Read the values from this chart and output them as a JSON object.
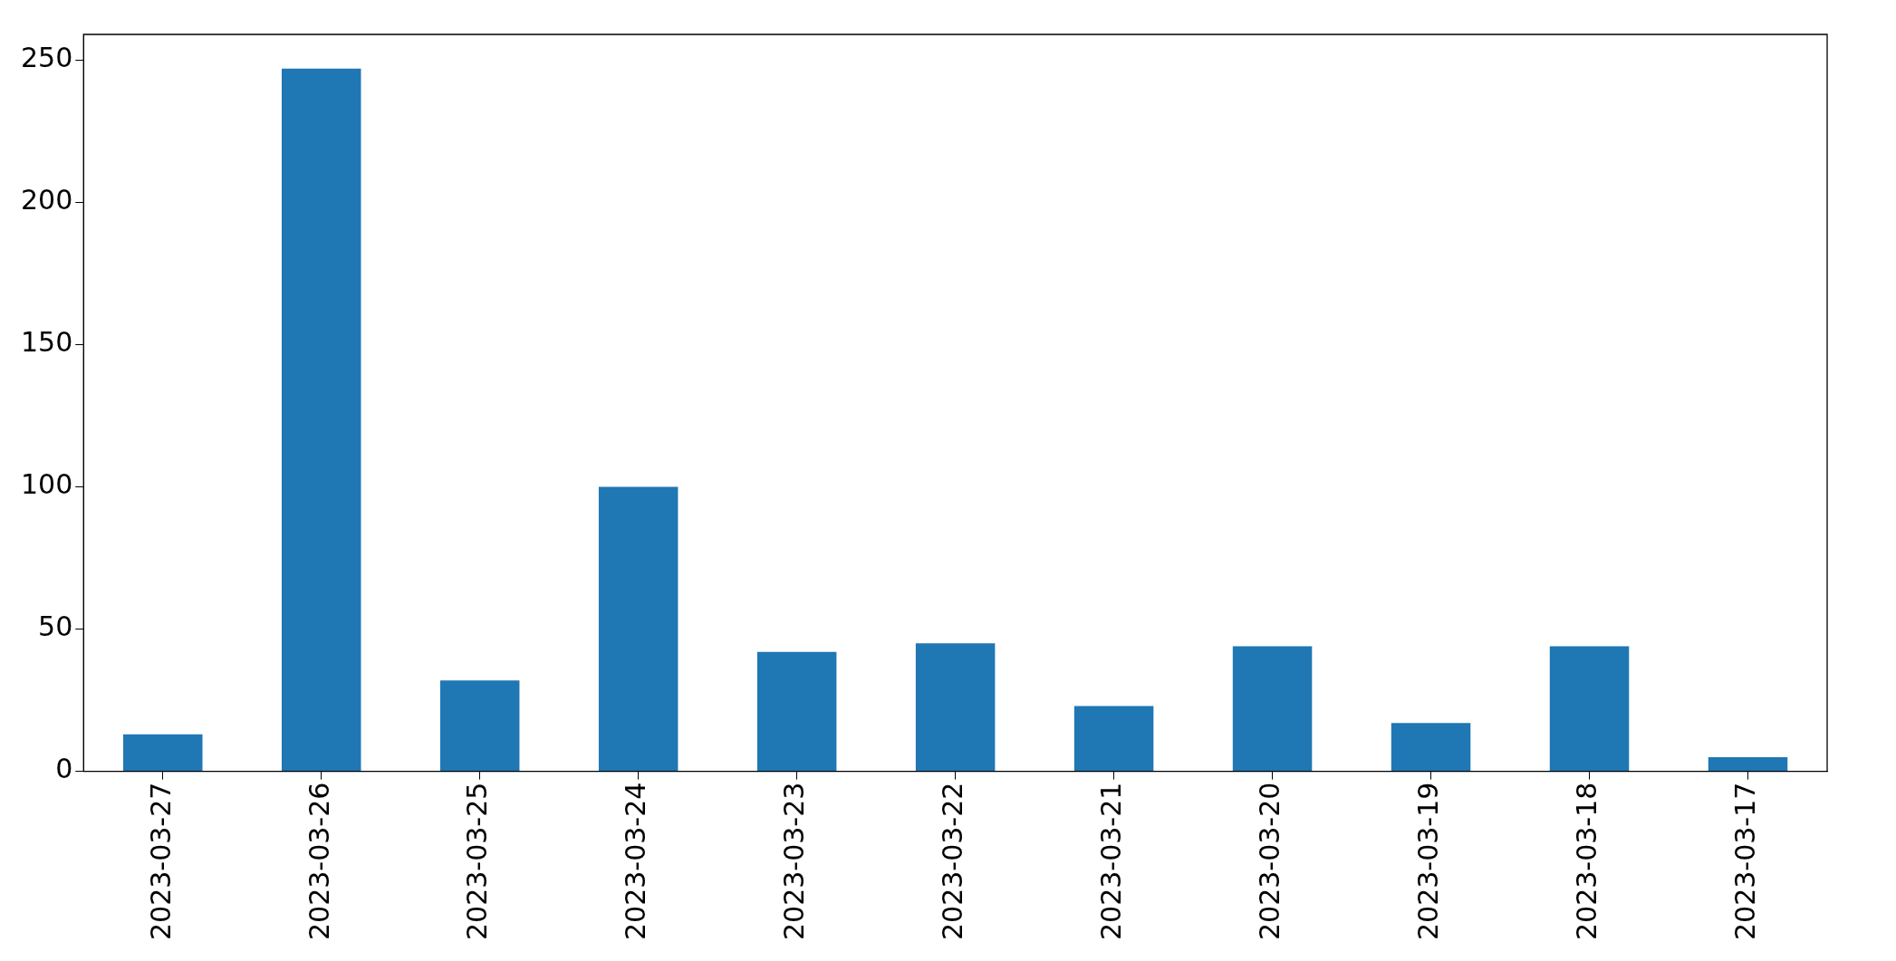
{
  "chart_data": {
    "type": "bar",
    "categories": [
      "2023-03-27",
      "2023-03-26",
      "2023-03-25",
      "2023-03-24",
      "2023-03-23",
      "2023-03-22",
      "2023-03-21",
      "2023-03-20",
      "2023-03-19",
      "2023-03-18",
      "2023-03-17"
    ],
    "values": [
      13,
      247,
      32,
      100,
      42,
      45,
      23,
      44,
      17,
      44,
      5
    ],
    "color": "#1f77b4",
    "ylim": [
      0,
      259
    ],
    "yticks": [
      0,
      50,
      100,
      150,
      200,
      250
    ],
    "grid": false,
    "legend": false
  }
}
